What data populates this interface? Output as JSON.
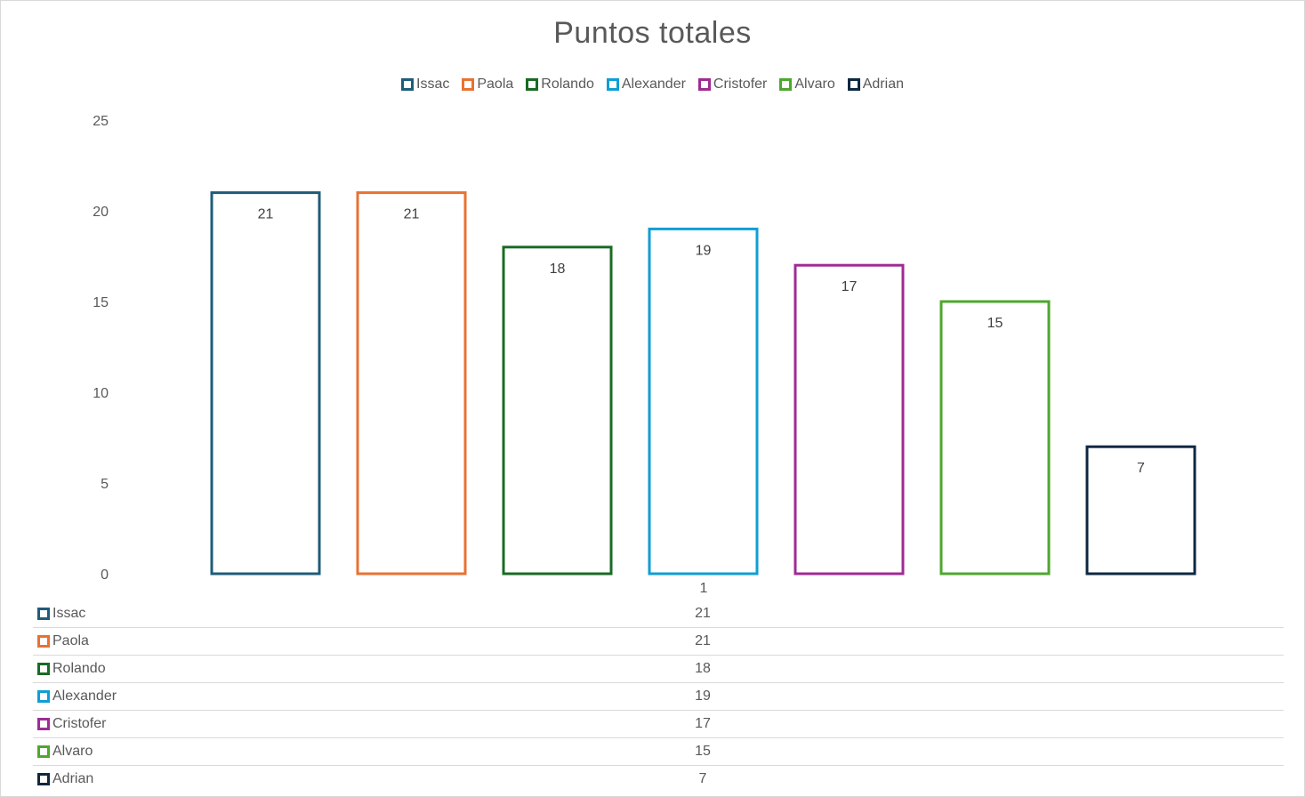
{
  "chart_data": {
    "type": "bar",
    "title": "Puntos totales",
    "category_label": "1",
    "ylim": [
      0,
      25
    ],
    "yticks": [
      0,
      5,
      10,
      15,
      20,
      25
    ],
    "legend_position": "top",
    "series": [
      {
        "name": "Issac",
        "value": 21,
        "color": "#1f5c7a"
      },
      {
        "name": "Paola",
        "value": 21,
        "color": "#e97132"
      },
      {
        "name": "Rolando",
        "value": 18,
        "color": "#196b24"
      },
      {
        "name": "Alexander",
        "value": 19,
        "color": "#0f9ed5"
      },
      {
        "name": "Cristofer",
        "value": 17,
        "color": "#a02b93"
      },
      {
        "name": "Alvaro",
        "value": 15,
        "color": "#4ea72e"
      },
      {
        "name": "Adrian",
        "value": 7,
        "color": "#0e2841"
      }
    ]
  }
}
